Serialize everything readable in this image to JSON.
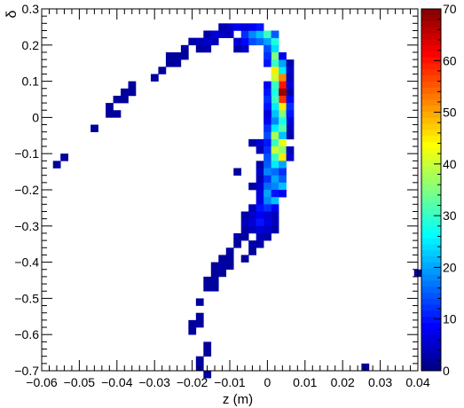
{
  "chart_data": {
    "type": "heatmap",
    "title": "",
    "xlabel": "z (m)",
    "ylabel": "δ",
    "xlim": [
      -0.06,
      0.04
    ],
    "ylim": [
      -0.7,
      0.3
    ],
    "zlim": [
      0,
      70
    ],
    "colormap": "jet",
    "x_ticks": [
      -0.06,
      -0.05,
      -0.04,
      -0.03,
      -0.02,
      -0.01,
      0,
      0.01,
      0.02,
      0.03,
      0.04
    ],
    "x_tick_labels": [
      "−0.06",
      "−0.05",
      "−0.04",
      "−0.03",
      "−0.02",
      "−0.01",
      "0",
      "0.01",
      "0.02",
      "0.03",
      "0.04"
    ],
    "y_ticks": [
      -0.7,
      -0.6,
      -0.5,
      -0.4,
      -0.3,
      -0.2,
      -0.1,
      0,
      0.1,
      0.2,
      0.3
    ],
    "y_tick_labels": [
      "−0.7",
      "−0.6",
      "−0.5",
      "−0.4",
      "−0.3",
      "−0.2",
      "−0.1",
      "0",
      "0.1",
      "0.2",
      "0.3"
    ],
    "z_ticks": [
      0,
      10,
      20,
      30,
      40,
      50,
      60,
      70
    ],
    "z_tick_labels": [
      "0",
      "10",
      "20",
      "30",
      "40",
      "50",
      "60",
      "70"
    ],
    "bin_width_x": 0.002,
    "bin_width_y": 0.02,
    "cells": [
      [
        -0.056,
        -0.13,
        2
      ],
      [
        -0.054,
        -0.11,
        2
      ],
      [
        -0.046,
        -0.03,
        2
      ],
      [
        -0.042,
        0.03,
        2
      ],
      [
        -0.042,
        0.01,
        2
      ],
      [
        -0.04,
        0.01,
        2
      ],
      [
        -0.04,
        0.05,
        2
      ],
      [
        -0.038,
        0.05,
        2
      ],
      [
        -0.038,
        0.07,
        2
      ],
      [
        -0.036,
        0.07,
        2
      ],
      [
        -0.036,
        0.09,
        2
      ],
      [
        -0.03,
        0.11,
        2
      ],
      [
        -0.028,
        0.13,
        2
      ],
      [
        -0.026,
        0.15,
        2
      ],
      [
        -0.026,
        0.17,
        2
      ],
      [
        -0.024,
        0.15,
        2
      ],
      [
        -0.024,
        0.17,
        2
      ],
      [
        -0.022,
        0.17,
        2
      ],
      [
        -0.022,
        0.19,
        2
      ],
      [
        -0.02,
        0.21,
        3
      ],
      [
        -0.018,
        0.19,
        2
      ],
      [
        -0.018,
        0.21,
        4
      ],
      [
        -0.016,
        0.19,
        3
      ],
      [
        -0.016,
        0.21,
        5
      ],
      [
        -0.016,
        0.23,
        3
      ],
      [
        -0.014,
        0.21,
        4
      ],
      [
        -0.014,
        0.23,
        6
      ],
      [
        -0.012,
        0.23,
        5
      ],
      [
        -0.012,
        0.25,
        3
      ],
      [
        -0.01,
        0.25,
        5
      ],
      [
        -0.01,
        0.23,
        4
      ],
      [
        -0.008,
        0.25,
        8
      ],
      [
        -0.008,
        0.19,
        3
      ],
      [
        -0.008,
        0.21,
        6
      ],
      [
        -0.006,
        0.19,
        5
      ],
      [
        -0.006,
        0.21,
        9
      ],
      [
        -0.006,
        0.23,
        12
      ],
      [
        -0.006,
        0.25,
        6
      ],
      [
        -0.004,
        0.21,
        14
      ],
      [
        -0.004,
        0.23,
        18
      ],
      [
        -0.004,
        0.25,
        8
      ],
      [
        -0.002,
        0.21,
        16
      ],
      [
        -0.002,
        0.23,
        22
      ],
      [
        -0.002,
        0.25,
        10
      ],
      [
        0.0,
        0.21,
        20
      ],
      [
        0.0,
        0.23,
        30
      ],
      [
        0.0,
        0.19,
        14
      ],
      [
        0.002,
        0.21,
        28
      ],
      [
        0.002,
        0.19,
        24
      ],
      [
        0.002,
        0.17,
        35
      ],
      [
        0.002,
        0.23,
        15
      ],
      [
        0.0,
        0.17,
        12
      ],
      [
        0.0,
        0.15,
        10
      ],
      [
        0.002,
        0.15,
        30
      ],
      [
        0.002,
        0.13,
        45
      ],
      [
        0.002,
        0.11,
        40
      ],
      [
        0.004,
        0.13,
        25
      ],
      [
        0.004,
        0.11,
        52
      ],
      [
        0.004,
        0.09,
        60
      ],
      [
        0.004,
        0.15,
        20
      ],
      [
        0.004,
        0.17,
        8
      ],
      [
        0.006,
        0.15,
        3
      ],
      [
        0.006,
        0.13,
        5
      ],
      [
        0.006,
        0.11,
        4
      ],
      [
        0.006,
        0.09,
        6
      ],
      [
        0.006,
        0.07,
        3
      ],
      [
        0.0,
        0.09,
        8
      ],
      [
        0.0,
        0.07,
        10
      ],
      [
        0.002,
        0.07,
        28
      ],
      [
        0.002,
        0.09,
        30
      ],
      [
        0.004,
        0.07,
        68
      ],
      [
        0.004,
        0.05,
        58
      ],
      [
        0.004,
        0.03,
        45
      ],
      [
        0.004,
        0.01,
        35
      ],
      [
        0.002,
        0.05,
        30
      ],
      [
        0.002,
        0.03,
        25
      ],
      [
        0.002,
        0.01,
        22
      ],
      [
        0.0,
        0.05,
        12
      ],
      [
        0.0,
        0.03,
        10
      ],
      [
        0.0,
        0.01,
        6
      ],
      [
        0.006,
        0.05,
        8
      ],
      [
        0.006,
        0.03,
        12
      ],
      [
        0.006,
        0.01,
        10
      ],
      [
        0.006,
        -0.01,
        6
      ],
      [
        0.006,
        -0.03,
        4
      ],
      [
        0.006,
        -0.05,
        3
      ],
      [
        0.0,
        -0.01,
        8
      ],
      [
        0.002,
        -0.01,
        18
      ],
      [
        0.004,
        -0.01,
        28
      ],
      [
        0.0,
        -0.03,
        12
      ],
      [
        0.002,
        -0.03,
        25
      ],
      [
        0.004,
        -0.03,
        32
      ],
      [
        0.0,
        -0.05,
        14
      ],
      [
        0.002,
        -0.05,
        38
      ],
      [
        0.004,
        -0.05,
        22
      ],
      [
        -0.004,
        -0.07,
        3
      ],
      [
        -0.002,
        -0.07,
        6
      ],
      [
        0.0,
        -0.07,
        10
      ],
      [
        0.002,
        -0.07,
        30
      ],
      [
        0.004,
        -0.07,
        42
      ],
      [
        -0.002,
        -0.09,
        4
      ],
      [
        0.0,
        -0.09,
        12
      ],
      [
        0.002,
        -0.09,
        40
      ],
      [
        0.004,
        -0.09,
        36
      ],
      [
        0.006,
        -0.09,
        4
      ],
      [
        0.0,
        -0.11,
        14
      ],
      [
        0.002,
        -0.11,
        30
      ],
      [
        0.004,
        -0.11,
        45
      ],
      [
        0.006,
        -0.11,
        6
      ],
      [
        -0.002,
        -0.13,
        3
      ],
      [
        0.0,
        -0.13,
        15
      ],
      [
        0.002,
        -0.13,
        25
      ],
      [
        0.004,
        -0.13,
        20
      ],
      [
        -0.008,
        -0.15,
        2
      ],
      [
        -0.002,
        -0.15,
        5
      ],
      [
        0.0,
        -0.15,
        18
      ],
      [
        0.002,
        -0.15,
        16
      ],
      [
        0.004,
        -0.15,
        12
      ],
      [
        -0.002,
        -0.17,
        4
      ],
      [
        0.0,
        -0.17,
        12
      ],
      [
        0.002,
        -0.17,
        20
      ],
      [
        0.004,
        -0.17,
        15
      ],
      [
        -0.004,
        -0.19,
        3
      ],
      [
        -0.002,
        -0.19,
        5
      ],
      [
        0.0,
        -0.19,
        16
      ],
      [
        0.002,
        -0.19,
        18
      ],
      [
        0.004,
        -0.19,
        22
      ],
      [
        -0.002,
        -0.21,
        6
      ],
      [
        0.0,
        -0.21,
        20
      ],
      [
        0.002,
        -0.21,
        10
      ],
      [
        0.004,
        -0.21,
        8
      ],
      [
        -0.002,
        -0.23,
        7
      ],
      [
        0.0,
        -0.23,
        18
      ],
      [
        0.002,
        -0.23,
        22
      ],
      [
        -0.004,
        -0.25,
        4
      ],
      [
        -0.002,
        -0.25,
        10
      ],
      [
        0.0,
        -0.25,
        12
      ],
      [
        0.002,
        -0.25,
        8
      ],
      [
        -0.006,
        -0.27,
        3
      ],
      [
        -0.004,
        -0.27,
        5
      ],
      [
        -0.002,
        -0.27,
        8
      ],
      [
        0.0,
        -0.27,
        6
      ],
      [
        0.002,
        -0.27,
        4
      ],
      [
        -0.006,
        -0.29,
        4
      ],
      [
        -0.004,
        -0.29,
        6
      ],
      [
        -0.002,
        -0.29,
        10
      ],
      [
        0.0,
        -0.29,
        7
      ],
      [
        0.002,
        -0.29,
        4
      ],
      [
        -0.006,
        -0.31,
        3
      ],
      [
        -0.004,
        -0.31,
        4
      ],
      [
        -0.002,
        -0.31,
        6
      ],
      [
        0.0,
        -0.31,
        5
      ],
      [
        0.002,
        -0.31,
        3
      ],
      [
        -0.008,
        -0.33,
        3
      ],
      [
        -0.006,
        -0.33,
        2
      ],
      [
        -0.002,
        -0.33,
        4
      ],
      [
        0.0,
        -0.33,
        3
      ],
      [
        -0.008,
        -0.35,
        2
      ],
      [
        -0.004,
        -0.35,
        3
      ],
      [
        -0.002,
        -0.35,
        3
      ],
      [
        -0.01,
        -0.37,
        2
      ],
      [
        -0.004,
        -0.37,
        2
      ],
      [
        -0.012,
        -0.39,
        2
      ],
      [
        -0.01,
        -0.39,
        2
      ],
      [
        -0.006,
        -0.39,
        2
      ],
      [
        -0.014,
        -0.41,
        2
      ],
      [
        -0.012,
        -0.41,
        3
      ],
      [
        -0.01,
        -0.41,
        2
      ],
      [
        -0.014,
        -0.43,
        2
      ],
      [
        -0.012,
        -0.43,
        2
      ],
      [
        -0.016,
        -0.45,
        2
      ],
      [
        -0.014,
        -0.45,
        2
      ],
      [
        -0.016,
        -0.47,
        2
      ],
      [
        -0.014,
        -0.47,
        2
      ],
      [
        -0.018,
        -0.51,
        2
      ],
      [
        -0.018,
        -0.55,
        2
      ],
      [
        -0.02,
        -0.57,
        2
      ],
      [
        -0.018,
        -0.57,
        2
      ],
      [
        -0.02,
        -0.59,
        2
      ],
      [
        -0.016,
        -0.63,
        2
      ],
      [
        -0.016,
        -0.65,
        2
      ],
      [
        -0.018,
        -0.67,
        2
      ],
      [
        -0.018,
        -0.69,
        2
      ],
      [
        -0.016,
        -0.71,
        2
      ],
      [
        0.04,
        -0.43,
        2
      ],
      [
        0.026,
        -0.69,
        2
      ]
    ]
  }
}
